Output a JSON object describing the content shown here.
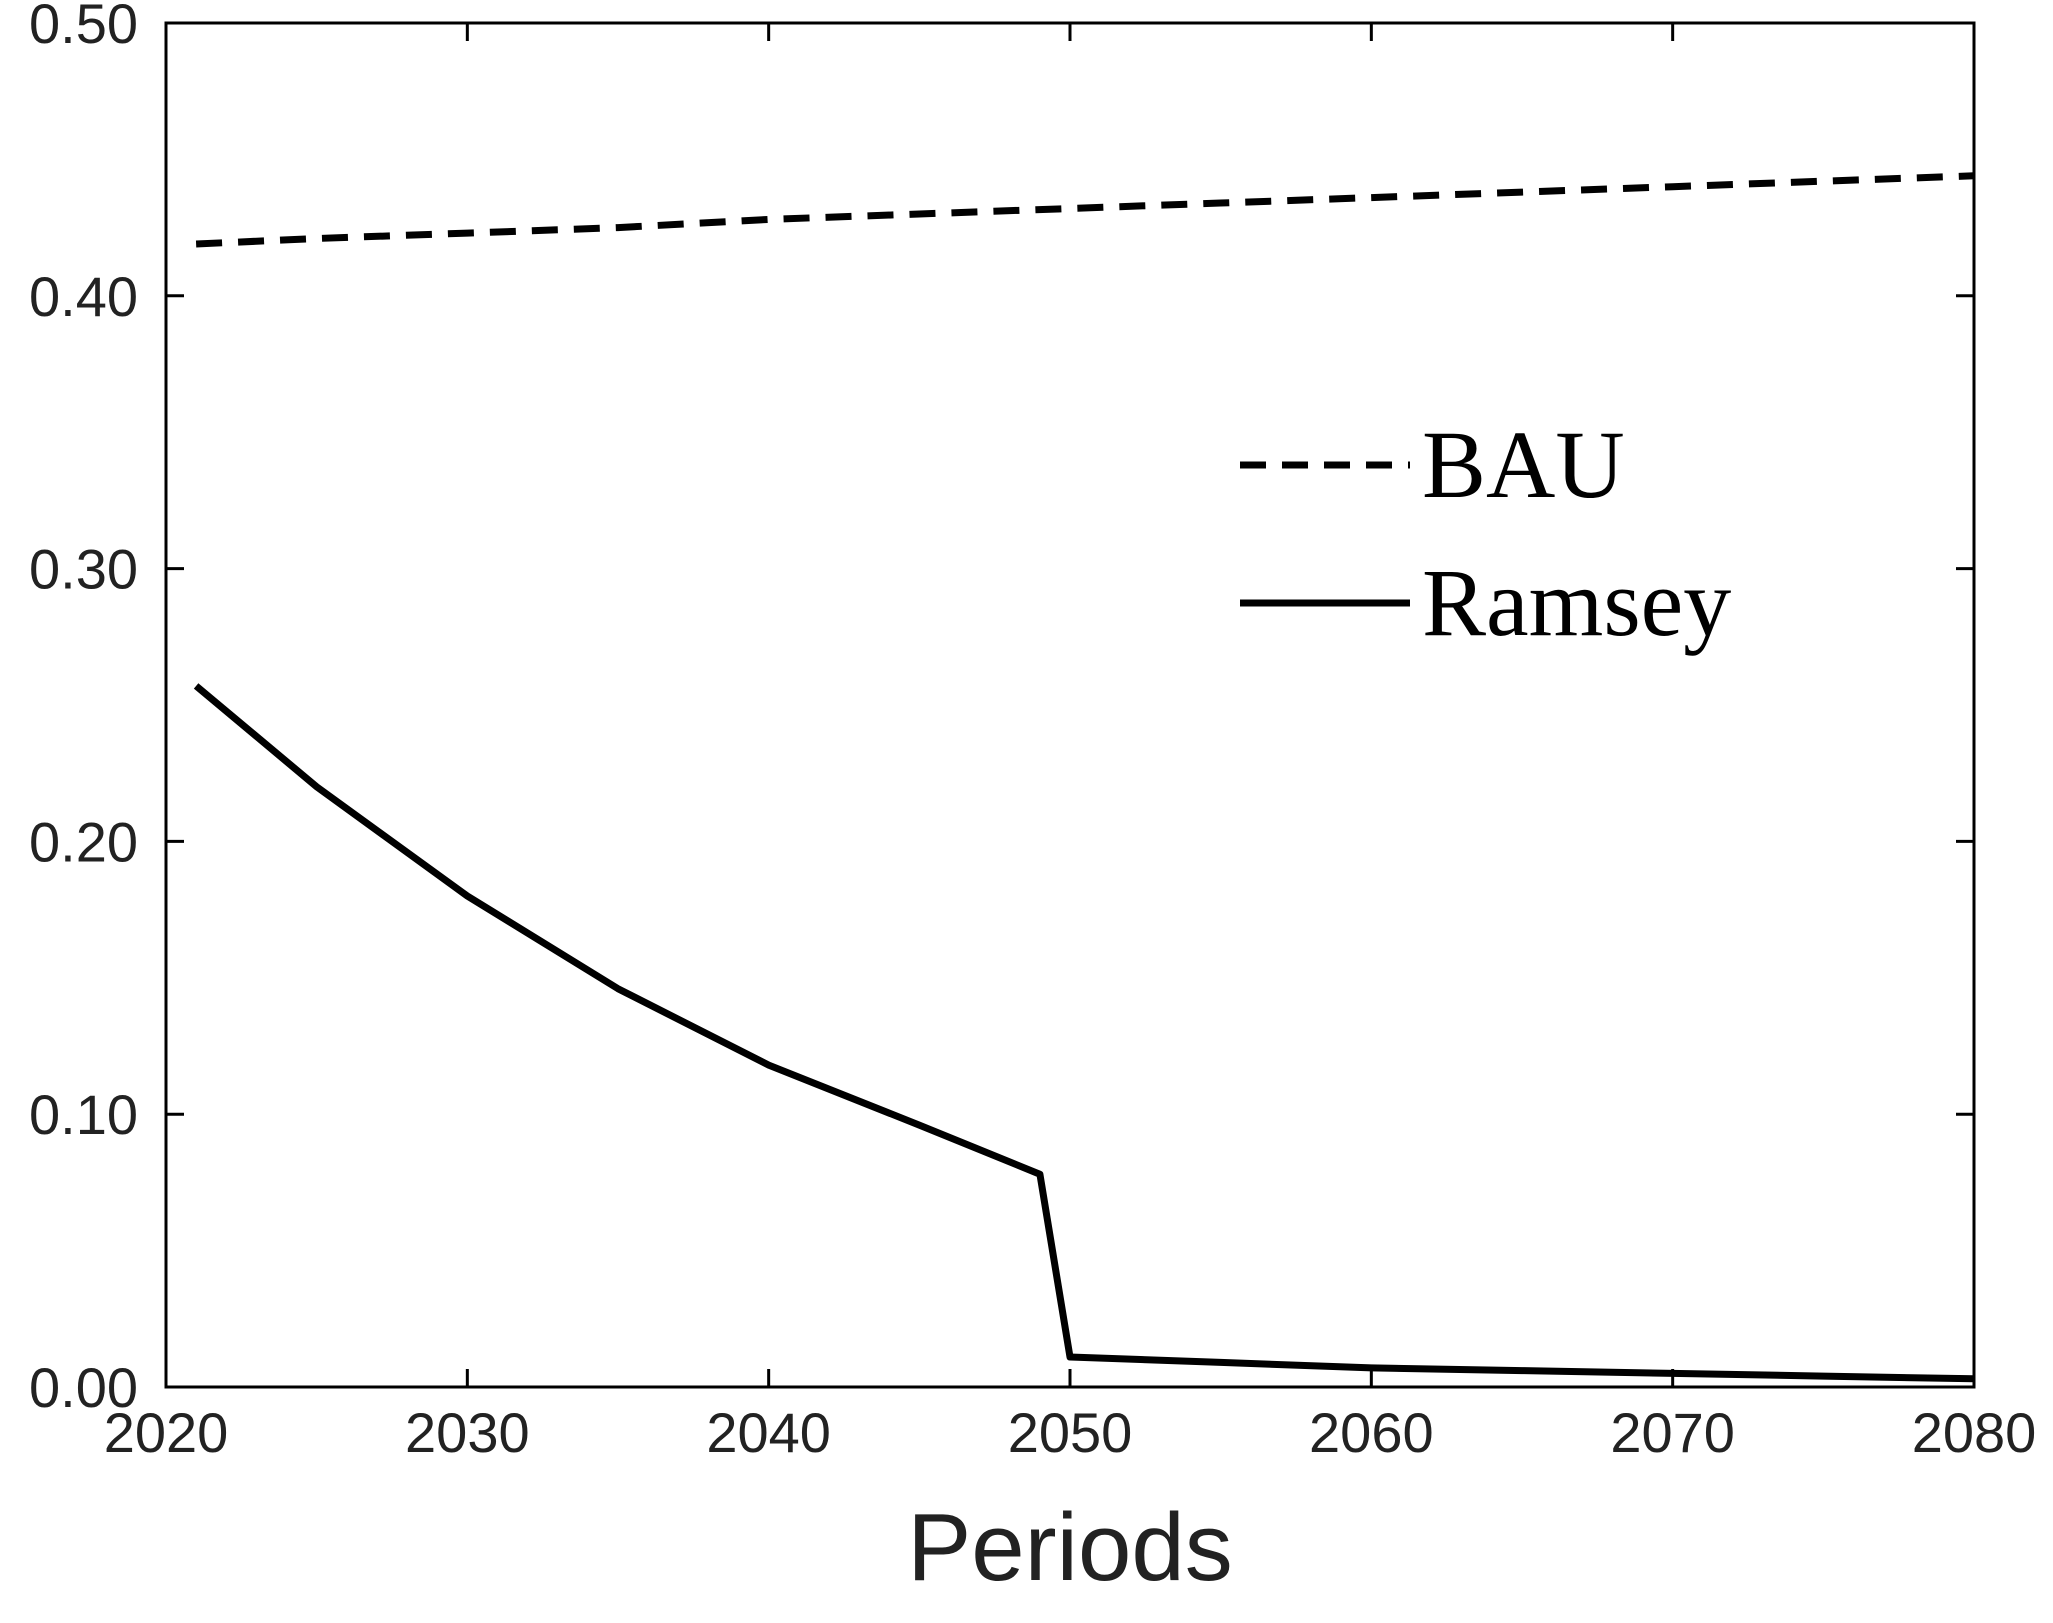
{
  "chart_data": {
    "type": "line",
    "title": "",
    "xlabel": "Periods",
    "ylabel": "",
    "xlim": [
      2020,
      2080
    ],
    "ylim": [
      0,
      0.5
    ],
    "xticks": [
      2020,
      2030,
      2040,
      2050,
      2060,
      2070,
      2080
    ],
    "xtick_labels": [
      "2020",
      "2030",
      "2040",
      "2050",
      "2060",
      "2070",
      "2080"
    ],
    "yticks": [
      0,
      0.1,
      0.2,
      0.3,
      0.4,
      0.5
    ],
    "ytick_labels": [
      "0.00",
      "0.10",
      "0.20",
      "0.30",
      "0.40",
      "0.50"
    ],
    "grid": false,
    "legend_position": "right",
    "series": [
      {
        "name": "BAU",
        "style": "dashed",
        "color": "#000000",
        "x": [
          2021,
          2025,
          2030,
          2035,
          2040,
          2045,
          2050,
          2055,
          2060,
          2065,
          2070,
          2075,
          2080
        ],
        "y": [
          0.419,
          0.421,
          0.423,
          0.425,
          0.428,
          0.43,
          0.432,
          0.434,
          0.436,
          0.438,
          0.44,
          0.442,
          0.444
        ]
      },
      {
        "name": "Ramsey",
        "style": "solid",
        "color": "#000000",
        "x": [
          2021,
          2025,
          2030,
          2035,
          2040,
          2045,
          2049,
          2050,
          2055,
          2060,
          2065,
          2070,
          2075,
          2080
        ],
        "y": [
          0.257,
          0.22,
          0.18,
          0.146,
          0.118,
          0.096,
          0.078,
          0.011,
          0.009,
          0.007,
          0.006,
          0.005,
          0.004,
          0.003
        ]
      }
    ]
  }
}
